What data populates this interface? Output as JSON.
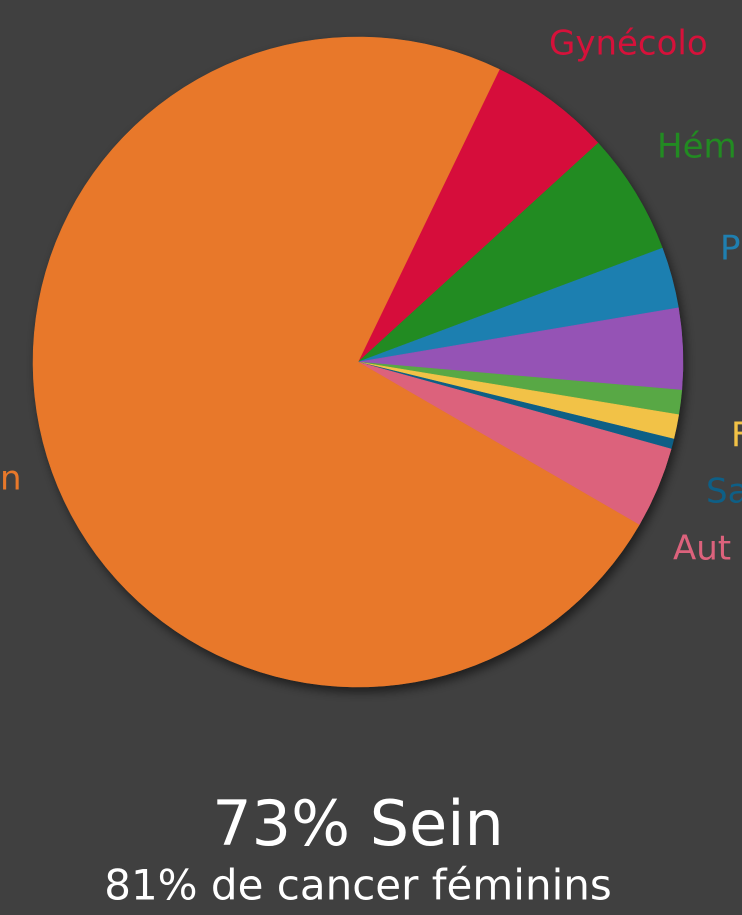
{
  "chart_data": {
    "type": "pie",
    "categories": [
      "Gynécolo",
      "Hém",
      "P",
      null,
      null,
      "F",
      "Sa",
      "Aut",
      "n"
    ],
    "values": [
      6,
      6,
      3,
      4,
      1.2,
      1.2,
      0.5,
      4,
      73
    ],
    "colors": [
      "#d6113a",
      "#228b22",
      "#1f7fb0",
      "#9552b5",
      "#58a845",
      "#f2c246",
      "#0e5f86",
      "#dc627c",
      "#e8782a"
    ],
    "title": "73% Sein",
    "subtitle": "81% de cancer féminins"
  }
}
